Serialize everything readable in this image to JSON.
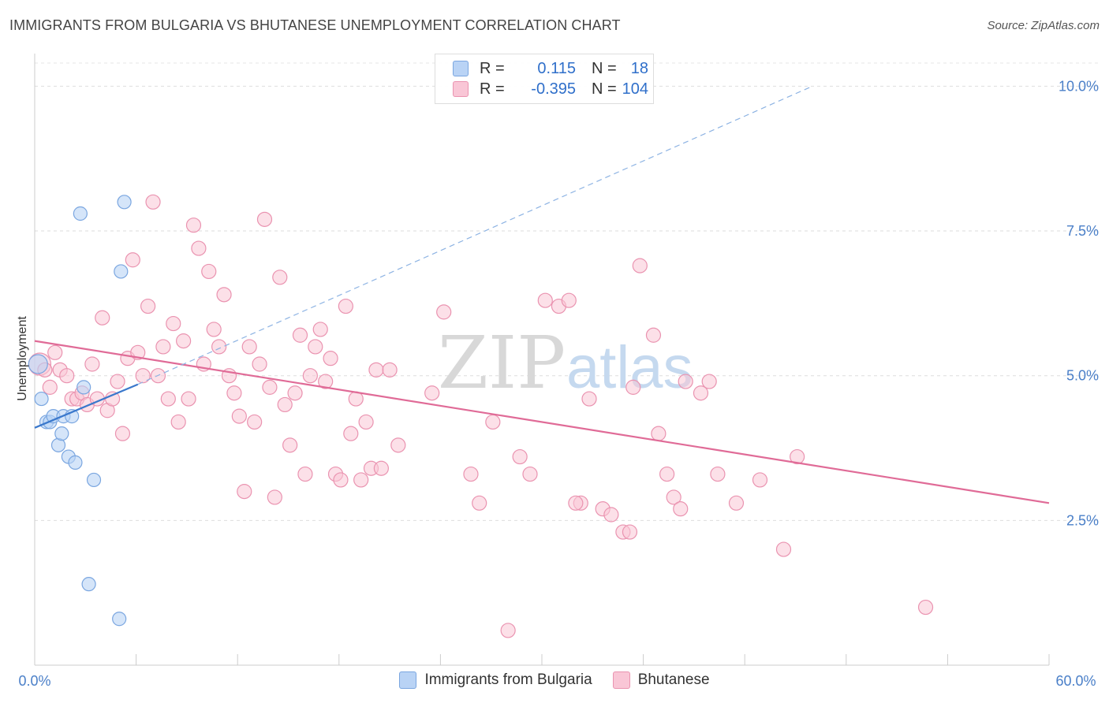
{
  "header": {
    "title": "IMMIGRANTS FROM BULGARIA VS BHUTANESE UNEMPLOYMENT CORRELATION CHART",
    "source": "Source: ZipAtlas.com"
  },
  "legend": {
    "rows": [
      {
        "r_label": "R =",
        "r_value": "0.115",
        "n_label": "N =",
        "n_value": "18"
      },
      {
        "r_label": "R =",
        "r_value": "-0.395",
        "n_label": "N =",
        "n_value": "104"
      }
    ]
  },
  "watermark": {
    "zip": "ZIP",
    "atlas": "atlas"
  },
  "chart_data": {
    "type": "scatter",
    "xlabel": "",
    "ylabel": "Unemployment",
    "xlim": [
      0,
      60
    ],
    "ylim": [
      0,
      10.4
    ],
    "x_tick_labels": [
      "0.0%",
      "60.0%"
    ],
    "y_ticks": [
      2.5,
      5.0,
      7.5,
      10.0
    ],
    "y_tick_labels": [
      "2.5%",
      "5.0%",
      "7.5%",
      "10.0%"
    ],
    "grid": true,
    "legend_position": "bottom-center",
    "colors": {
      "bulgaria_fill": "#b9d3f5",
      "bulgaria_stroke": "#7aa6e0",
      "bulgaria_line": "#3a78cc",
      "bhutanese_fill": "#f9c6d6",
      "bhutanese_stroke": "#ea93b0",
      "bhutanese_line": "#e06b97"
    },
    "series": [
      {
        "name": "Immigrants from Bulgaria",
        "points": [
          [
            0.2,
            5.2
          ],
          [
            0.4,
            4.6
          ],
          [
            0.7,
            4.2
          ],
          [
            0.9,
            4.2
          ],
          [
            1.1,
            4.3
          ],
          [
            1.4,
            3.8
          ],
          [
            1.6,
            4.0
          ],
          [
            1.7,
            4.3
          ],
          [
            2.0,
            3.6
          ],
          [
            2.2,
            4.3
          ],
          [
            2.4,
            3.5
          ],
          [
            2.7,
            7.8
          ],
          [
            2.9,
            4.8
          ],
          [
            3.2,
            1.4
          ],
          [
            3.5,
            3.2
          ],
          [
            5.1,
            6.8
          ],
          [
            5.3,
            8.0
          ],
          [
            5.0,
            0.8
          ]
        ],
        "trend": {
          "x0": 0,
          "y0": 4.1,
          "x1": 6.1,
          "y1": 4.85,
          "dash_to_x": 46,
          "dash_to_y": 10.0
        }
      },
      {
        "name": "Bhutanese",
        "points": [
          [
            0.3,
            5.2
          ],
          [
            0.6,
            5.1
          ],
          [
            0.9,
            4.8
          ],
          [
            1.2,
            5.4
          ],
          [
            1.5,
            5.1
          ],
          [
            1.9,
            5.0
          ],
          [
            2.2,
            4.6
          ],
          [
            2.5,
            4.6
          ],
          [
            2.8,
            4.7
          ],
          [
            3.1,
            4.5
          ],
          [
            3.4,
            5.2
          ],
          [
            3.7,
            4.6
          ],
          [
            4.0,
            6.0
          ],
          [
            4.3,
            4.4
          ],
          [
            4.6,
            4.6
          ],
          [
            4.9,
            4.9
          ],
          [
            5.2,
            4.0
          ],
          [
            5.5,
            5.3
          ],
          [
            5.8,
            7.0
          ],
          [
            6.1,
            5.4
          ],
          [
            6.4,
            5.0
          ],
          [
            6.7,
            6.2
          ],
          [
            7.0,
            8.0
          ],
          [
            7.3,
            5.0
          ],
          [
            7.6,
            5.5
          ],
          [
            7.9,
            4.6
          ],
          [
            8.2,
            5.9
          ],
          [
            8.5,
            4.2
          ],
          [
            8.8,
            5.6
          ],
          [
            9.1,
            4.6
          ],
          [
            9.4,
            7.6
          ],
          [
            9.7,
            7.2
          ],
          [
            10.0,
            5.2
          ],
          [
            10.3,
            6.8
          ],
          [
            10.6,
            5.8
          ],
          [
            10.9,
            5.5
          ],
          [
            11.2,
            6.4
          ],
          [
            11.5,
            5.0
          ],
          [
            11.8,
            4.7
          ],
          [
            12.1,
            4.3
          ],
          [
            12.4,
            3.0
          ],
          [
            12.7,
            5.5
          ],
          [
            13.0,
            4.2
          ],
          [
            13.3,
            5.2
          ],
          [
            13.6,
            7.7
          ],
          [
            13.9,
            4.8
          ],
          [
            14.2,
            2.9
          ],
          [
            14.5,
            6.7
          ],
          [
            14.8,
            4.5
          ],
          [
            15.1,
            3.8
          ],
          [
            15.4,
            4.7
          ],
          [
            15.7,
            5.7
          ],
          [
            16.0,
            3.3
          ],
          [
            16.3,
            5.0
          ],
          [
            16.6,
            5.5
          ],
          [
            16.9,
            5.8
          ],
          [
            17.2,
            4.9
          ],
          [
            17.5,
            5.3
          ],
          [
            17.8,
            3.3
          ],
          [
            18.1,
            3.2
          ],
          [
            18.4,
            6.2
          ],
          [
            18.7,
            4.0
          ],
          [
            19.0,
            4.6
          ],
          [
            19.3,
            3.2
          ],
          [
            19.6,
            4.2
          ],
          [
            19.9,
            3.4
          ],
          [
            20.2,
            5.1
          ],
          [
            20.5,
            3.4
          ],
          [
            21.0,
            5.1
          ],
          [
            21.5,
            3.8
          ],
          [
            24.2,
            6.1
          ],
          [
            25.8,
            3.3
          ],
          [
            27.1,
            4.2
          ],
          [
            28.0,
            0.6
          ],
          [
            30.2,
            6.3
          ],
          [
            31.0,
            6.2
          ],
          [
            31.6,
            6.3
          ],
          [
            32.3,
            2.8
          ],
          [
            32.8,
            4.6
          ],
          [
            33.6,
            2.7
          ],
          [
            34.1,
            2.6
          ],
          [
            34.8,
            2.3
          ],
          [
            35.2,
            2.3
          ],
          [
            35.4,
            4.8
          ],
          [
            35.8,
            6.9
          ],
          [
            36.6,
            5.7
          ],
          [
            36.9,
            4.0
          ],
          [
            37.4,
            3.3
          ],
          [
            37.8,
            2.9
          ],
          [
            38.5,
            4.9
          ],
          [
            39.4,
            4.7
          ],
          [
            39.9,
            4.9
          ],
          [
            40.4,
            3.3
          ],
          [
            41.5,
            2.8
          ],
          [
            42.9,
            3.2
          ],
          [
            44.3,
            2.0
          ],
          [
            45.1,
            3.6
          ],
          [
            52.7,
            1.0
          ],
          [
            38.2,
            2.7
          ],
          [
            26.3,
            2.8
          ],
          [
            29.3,
            3.3
          ],
          [
            23.5,
            4.7
          ],
          [
            32.0,
            2.8
          ],
          [
            28.7,
            3.6
          ]
        ],
        "trend": {
          "x0": 0,
          "y0": 5.6,
          "x1": 60,
          "y1": 2.8
        }
      }
    ]
  },
  "bottom_legend": {
    "items": [
      "Immigrants from Bulgaria",
      "Bhutanese"
    ]
  }
}
